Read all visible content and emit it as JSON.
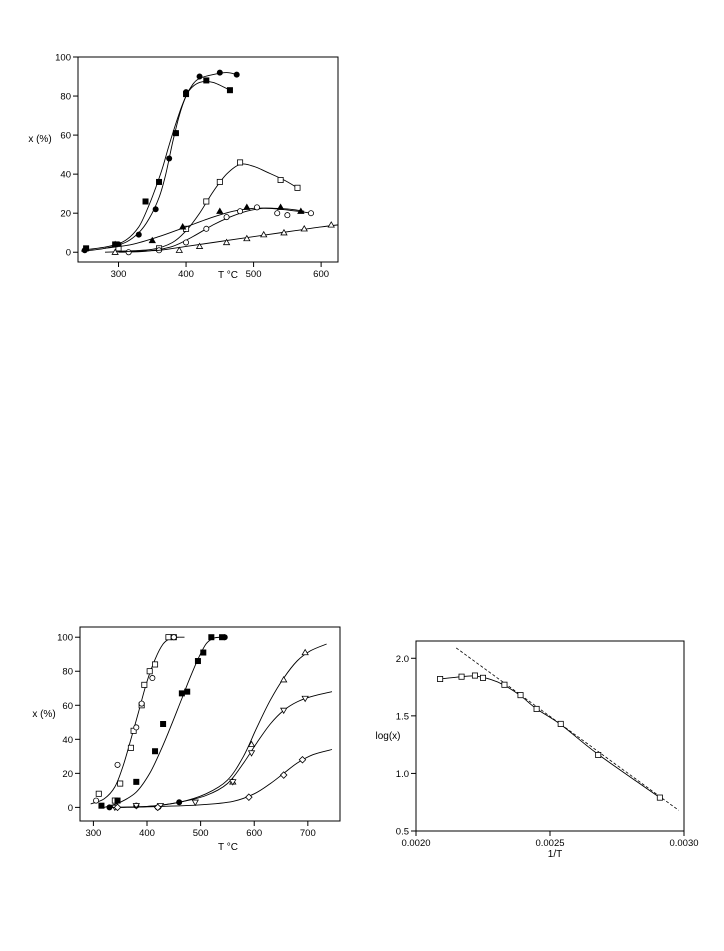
{
  "chart_data": [
    {
      "type": "scatter",
      "xlabel": "T °C",
      "ylabel": "x (%)",
      "xlim": [
        240,
        625
      ],
      "ylim": [
        -5,
        100
      ],
      "xticks": [
        300,
        400,
        500,
        600
      ],
      "yticks": [
        0,
        20,
        40,
        60,
        80,
        100
      ],
      "series": [
        {
          "marker": "filled-circle",
          "points": [
            [
              250,
              1
            ],
            [
              300,
              4
            ],
            [
              330,
              9
            ],
            [
              355,
              22
            ],
            [
              375,
              48
            ],
            [
              385,
              61
            ],
            [
              400,
              82
            ],
            [
              420,
              90
            ],
            [
              450,
              92
            ],
            [
              475,
              91
            ]
          ],
          "curve": [
            [
              245,
              0.5
            ],
            [
              280,
              2
            ],
            [
              310,
              5
            ],
            [
              330,
              10
            ],
            [
              345,
              17
            ],
            [
              360,
              28
            ],
            [
              370,
              40
            ],
            [
              380,
              56
            ],
            [
              390,
              70
            ],
            [
              400,
              80
            ],
            [
              410,
              86
            ],
            [
              420,
              89
            ],
            [
              440,
              91
            ],
            [
              460,
              92
            ],
            [
              475,
              91
            ]
          ]
        },
        {
          "marker": "filled-square",
          "points": [
            [
              252,
              2
            ],
            [
              295,
              4
            ],
            [
              340,
              26
            ],
            [
              360,
              36
            ],
            [
              385,
              61
            ],
            [
              400,
              81
            ],
            [
              430,
              88
            ],
            [
              465,
              83
            ]
          ],
          "curve": [
            [
              245,
              1
            ],
            [
              285,
              3
            ],
            [
              310,
              6
            ],
            [
              330,
              13
            ],
            [
              345,
              24
            ],
            [
              355,
              33
            ],
            [
              365,
              43
            ],
            [
              375,
              55
            ],
            [
              385,
              66
            ],
            [
              395,
              76
            ],
            [
              405,
              83
            ],
            [
              420,
              87
            ],
            [
              440,
              87
            ],
            [
              465,
              83
            ]
          ]
        },
        {
          "marker": "open-square",
          "points": [
            [
              300,
              2
            ],
            [
              360,
              2
            ],
            [
              400,
              12
            ],
            [
              430,
              26
            ],
            [
              450,
              36
            ],
            [
              480,
              46
            ],
            [
              540,
              37
            ],
            [
              565,
              33
            ]
          ],
          "curve": [
            [
              300,
              0.5
            ],
            [
              350,
              1.5
            ],
            [
              380,
              5
            ],
            [
              400,
              11
            ],
            [
              420,
              20
            ],
            [
              440,
              31
            ],
            [
              460,
              40
            ],
            [
              480,
              45
            ],
            [
              500,
              44
            ],
            [
              520,
              41
            ],
            [
              545,
              37
            ],
            [
              565,
              33
            ]
          ]
        },
        {
          "marker": "filled-triangle",
          "points": [
            [
              295,
              4
            ],
            [
              350,
              6
            ],
            [
              395,
              13
            ],
            [
              450,
              21
            ],
            [
              490,
              23
            ],
            [
              540,
              23
            ],
            [
              570,
              21
            ]
          ],
          "curve": [
            [
              280,
              2
            ],
            [
              320,
              4
            ],
            [
              360,
              8
            ],
            [
              400,
              13
            ],
            [
              440,
              18
            ],
            [
              470,
              21
            ],
            [
              500,
              22.5
            ],
            [
              530,
              22.5
            ],
            [
              555,
              22
            ],
            [
              575,
              21
            ]
          ]
        },
        {
          "marker": "open-circle",
          "points": [
            [
              315,
              0
            ],
            [
              360,
              1
            ],
            [
              400,
              5
            ],
            [
              430,
              12
            ],
            [
              460,
              18
            ],
            [
              480,
              21
            ],
            [
              505,
              23
            ],
            [
              535,
              20
            ],
            [
              550,
              19
            ],
            [
              585,
              20
            ]
          ],
          "curve": [
            [
              300,
              0
            ],
            [
              340,
              0.5
            ],
            [
              380,
              3
            ],
            [
              410,
              8
            ],
            [
              440,
              14
            ],
            [
              465,
              18
            ],
            [
              490,
              21
            ],
            [
              515,
              22.5
            ],
            [
              540,
              22
            ],
            [
              565,
              21
            ],
            [
              585,
              20
            ]
          ]
        },
        {
          "marker": "open-triangle",
          "points": [
            [
              295,
              0
            ],
            [
              390,
              1
            ],
            [
              420,
              3
            ],
            [
              460,
              5
            ],
            [
              490,
              7
            ],
            [
              515,
              9
            ],
            [
              545,
              10
            ],
            [
              575,
              12
            ],
            [
              615,
              14
            ]
          ],
          "curve": [
            [
              280,
              0
            ],
            [
              320,
              0.5
            ],
            [
              360,
              1
            ],
            [
              400,
              3
            ],
            [
              440,
              5
            ],
            [
              480,
              7
            ],
            [
              520,
              9
            ],
            [
              560,
              11
            ],
            [
              600,
              13
            ],
            [
              625,
              14
            ]
          ]
        }
      ]
    },
    {
      "type": "scatter",
      "xlabel": "T °C",
      "ylabel": "x (%)",
      "xlim": [
        275,
        760
      ],
      "ylim": [
        -8,
        106
      ],
      "xticks": [
        300,
        400,
        500,
        600,
        700
      ],
      "yticks": [
        0,
        20,
        40,
        60,
        80,
        100
      ],
      "series": [
        {
          "marker": "open-square",
          "points": [
            [
              310,
              8
            ],
            [
              340,
              4
            ],
            [
              350,
              14
            ],
            [
              370,
              35
            ],
            [
              375,
              45
            ],
            [
              390,
              60
            ],
            [
              395,
              72
            ],
            [
              405,
              80
            ],
            [
              415,
              84
            ],
            [
              440,
              100
            ],
            [
              450,
              100
            ]
          ],
          "curve": [
            [
              295,
              2
            ],
            [
              320,
              5
            ],
            [
              340,
              12
            ],
            [
              355,
              24
            ],
            [
              370,
              40
            ],
            [
              385,
              57
            ],
            [
              400,
              74
            ],
            [
              415,
              87
            ],
            [
              430,
              96
            ],
            [
              445,
              99.5
            ],
            [
              460,
              100
            ],
            [
              470,
              100
            ]
          ]
        },
        {
          "marker": "open-circle",
          "points": [
            [
              305,
              4
            ],
            [
              345,
              25
            ],
            [
              380,
              47
            ],
            [
              390,
              61
            ],
            [
              410,
              76
            ],
            [
              450,
              100
            ]
          ],
          "curve": []
        },
        {
          "marker": "filled-square",
          "points": [
            [
              315,
              1
            ],
            [
              345,
              4
            ],
            [
              380,
              15
            ],
            [
              415,
              33
            ],
            [
              430,
              49
            ],
            [
              465,
              67
            ],
            [
              475,
              68
            ],
            [
              495,
              86
            ],
            [
              505,
              91
            ],
            [
              520,
              100
            ],
            [
              540,
              100
            ]
          ],
          "curve": [
            [
              320,
              0
            ],
            [
              350,
              3
            ],
            [
              380,
              9
            ],
            [
              405,
              20
            ],
            [
              425,
              33
            ],
            [
              445,
              48
            ],
            [
              465,
              64
            ],
            [
              480,
              76
            ],
            [
              495,
              87
            ],
            [
              510,
              96
            ],
            [
              525,
              99.5
            ],
            [
              540,
              100
            ]
          ]
        },
        {
          "marker": "filled-circle",
          "points": [
            [
              330,
              0
            ],
            [
              380,
              1
            ],
            [
              420,
              0
            ],
            [
              460,
              3
            ],
            [
              545,
              100
            ]
          ],
          "curve": []
        },
        {
          "marker": "open-triangle",
          "points": [
            [
              560,
              15
            ],
            [
              595,
              37
            ],
            [
              655,
              75
            ],
            [
              695,
              91
            ]
          ],
          "curve": [
            [
              330,
              0
            ],
            [
              400,
              0.5
            ],
            [
              460,
              3
            ],
            [
              510,
              8
            ],
            [
              550,
              16
            ],
            [
              580,
              30
            ],
            [
              605,
              47
            ],
            [
              630,
              63
            ],
            [
              655,
              76
            ],
            [
              680,
              86
            ],
            [
              705,
              92
            ],
            [
              735,
              96
            ]
          ]
        },
        {
          "marker": "open-inverted-triangle",
          "points": [
            [
              340,
              0
            ],
            [
              380,
              1
            ],
            [
              425,
              1
            ],
            [
              490,
              3
            ],
            [
              560,
              15
            ],
            [
              595,
              32
            ],
            [
              655,
              57
            ],
            [
              695,
              64
            ]
          ],
          "curve": [
            [
              330,
              0
            ],
            [
              400,
              0.5
            ],
            [
              460,
              3
            ],
            [
              510,
              7
            ],
            [
              550,
              14
            ],
            [
              580,
              26
            ],
            [
              605,
              38
            ],
            [
              630,
              49
            ],
            [
              655,
              57
            ],
            [
              680,
              62
            ],
            [
              705,
              65
            ],
            [
              745,
              68
            ]
          ]
        },
        {
          "marker": "open-diamond",
          "points": [
            [
              345,
              0
            ],
            [
              420,
              0
            ],
            [
              590,
              6
            ],
            [
              655,
              19
            ],
            [
              690,
              28
            ]
          ],
          "curve": [
            [
              330,
              0
            ],
            [
              420,
              0.5
            ],
            [
              500,
              1.5
            ],
            [
              560,
              3.5
            ],
            [
              600,
              8
            ],
            [
              630,
              14
            ],
            [
              655,
              20
            ],
            [
              680,
              26
            ],
            [
              710,
              31
            ],
            [
              745,
              34
            ]
          ]
        }
      ]
    },
    {
      "type": "scatter",
      "xlabel": "1/T",
      "ylabel": "log(x)",
      "xlim": [
        0.002,
        0.003
      ],
      "ylim": [
        0.5,
        2.15
      ],
      "xticks": [
        "0.0020",
        "0.0025",
        "0.0030"
      ],
      "yticks": [
        "0.5",
        "1.0",
        "1.5",
        "2.0"
      ],
      "series": [
        {
          "marker": "open-square",
          "points": [
            [
              0.00209,
              1.82
            ],
            [
              0.00217,
              1.84
            ],
            [
              0.00222,
              1.85
            ],
            [
              0.00225,
              1.83
            ],
            [
              0.00233,
              1.77
            ],
            [
              0.00239,
              1.68
            ],
            [
              0.00245,
              1.56
            ],
            [
              0.00254,
              1.43
            ],
            [
              0.00268,
              1.16
            ],
            [
              0.00291,
              0.79
            ]
          ],
          "curve": [
            [
              0.00209,
              1.82
            ],
            [
              0.00217,
              1.84
            ],
            [
              0.00222,
              1.845
            ],
            [
              0.00228,
              1.815
            ],
            [
              0.00233,
              1.765
            ],
            [
              0.00239,
              1.675
            ],
            [
              0.00245,
              1.56
            ],
            [
              0.00254,
              1.425
            ],
            [
              0.00268,
              1.165
            ],
            [
              0.00291,
              0.79
            ]
          ]
        }
      ],
      "fit_line": [
        [
          0.00215,
          2.09
        ],
        [
          0.00298,
          0.68
        ]
      ]
    }
  ]
}
